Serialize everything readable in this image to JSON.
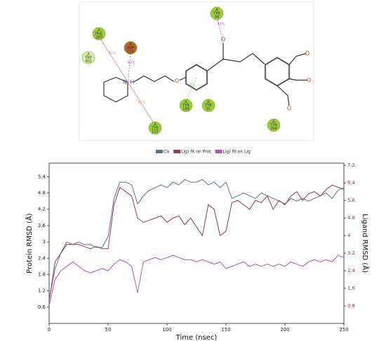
{
  "diagram": {
    "residues": [
      {
        "chain": "A",
        "name": "TYR",
        "number": "94",
        "color": "#9ccc3c"
      },
      {
        "chain": "A",
        "name": "PHE",
        "number": "280",
        "color": "#9ccc3c"
      },
      {
        "chain": "A",
        "name": "TRP",
        "number": "402",
        "color": "#d8eba8"
      },
      {
        "chain": "A",
        "name": "ASP",
        "number": "114",
        "color": "#b8642a"
      },
      {
        "chain": "A",
        "name": "TYR",
        "number": "189",
        "color": "#9ccc3c"
      },
      {
        "chain": "A",
        "name": "TYR",
        "number": "91",
        "color": "#9ccc3c"
      },
      {
        "chain": "A",
        "name": "TYR",
        "number": "115",
        "color": "#9ccc3c"
      },
      {
        "chain": "A",
        "name": "TYR",
        "number": "394",
        "color": "#9ccc3c"
      }
    ],
    "interactions": [
      "41%",
      "97%",
      "92%",
      "42%",
      "6%"
    ],
    "atoms": [
      "N⁺H",
      "O",
      "O",
      "O",
      "O",
      "O"
    ]
  },
  "chart_data": {
    "type": "line",
    "x_label": "Time (nsec)",
    "y_label": "Protein RMSD (Å)",
    "y2_label": "Ligand RMSD (Å)",
    "x": [
      0,
      5,
      10,
      15,
      20,
      25,
      30,
      35,
      40,
      45,
      50,
      55,
      60,
      65,
      70,
      75,
      80,
      85,
      90,
      95,
      100,
      105,
      110,
      115,
      120,
      125,
      130,
      135,
      140,
      145,
      150,
      155,
      160,
      165,
      170,
      175,
      180,
      185,
      190,
      195,
      200,
      205,
      210,
      215,
      220,
      225,
      230,
      235,
      240,
      245,
      250
    ],
    "xlim": [
      0,
      250
    ],
    "xticks": [
      0,
      50,
      100,
      150,
      200,
      250
    ],
    "ylim": [
      0,
      5.9
    ],
    "yticks": [
      0.6,
      1.2,
      1.8,
      2.4,
      3.0,
      3.6,
      4.2,
      4.8,
      5.4
    ],
    "y2lim": [
      0,
      7.3
    ],
    "y2ticks": [
      0.8,
      1.6,
      2.4,
      3.2,
      4.0,
      4.8,
      5.6,
      6.4,
      7.2
    ],
    "series": [
      {
        "name": "Cα",
        "color": "#5b7097",
        "values": [
          0.9,
          2.0,
          2.6,
          3.0,
          2.9,
          3.0,
          2.9,
          2.9,
          2.8,
          2.8,
          3.2,
          4.6,
          5.2,
          5.2,
          5.1,
          4.4,
          4.7,
          4.9,
          5.0,
          5.1,
          5.0,
          5.2,
          5.1,
          5.3,
          5.2,
          5.2,
          5.3,
          5.1,
          5.2,
          5.0,
          5.2,
          4.6,
          4.7,
          4.8,
          4.7,
          4.6,
          4.8,
          4.7,
          4.6,
          4.5,
          4.4,
          4.6,
          4.5,
          4.6,
          4.5,
          4.6,
          4.7,
          4.8,
          4.6,
          4.9,
          5.0
        ]
      },
      {
        "name": "Lig) fit on Prot",
        "color": "#8c3a55",
        "axis": "y2",
        "values": [
          1.0,
          2.8,
          3.2,
          3.6,
          3.6,
          3.6,
          3.5,
          3.4,
          3.5,
          3.4,
          3.4,
          5.4,
          6.2,
          6.0,
          5.8,
          4.8,
          4.6,
          4.7,
          4.8,
          4.9,
          4.6,
          4.8,
          4.9,
          4.5,
          4.8,
          4.4,
          4.0,
          5.4,
          5.2,
          4.0,
          4.2,
          5.5,
          5.6,
          5.4,
          5.2,
          5.6,
          5.5,
          5.8,
          5.2,
          5.6,
          5.4,
          5.8,
          6.0,
          5.6,
          5.9,
          6.0,
          5.8,
          6.1,
          6.3,
          6.2,
          6.1
        ]
      },
      {
        "name": "Lig) fit on Lig",
        "color": "#b24fc4",
        "axis": "y2",
        "values": [
          0.8,
          2.0,
          2.4,
          2.6,
          2.8,
          2.6,
          2.4,
          2.3,
          2.4,
          2.5,
          2.4,
          2.7,
          2.9,
          2.8,
          2.6,
          1.4,
          2.8,
          2.9,
          3.0,
          2.9,
          3.0,
          3.1,
          3.0,
          2.9,
          2.9,
          2.8,
          2.9,
          2.8,
          2.7,
          2.8,
          2.5,
          2.6,
          2.7,
          2.8,
          2.6,
          2.7,
          2.6,
          2.7,
          2.6,
          2.7,
          2.6,
          2.8,
          2.7,
          2.6,
          2.8,
          2.9,
          2.8,
          2.9,
          2.8,
          3.1,
          3.0
        ]
      }
    ]
  }
}
